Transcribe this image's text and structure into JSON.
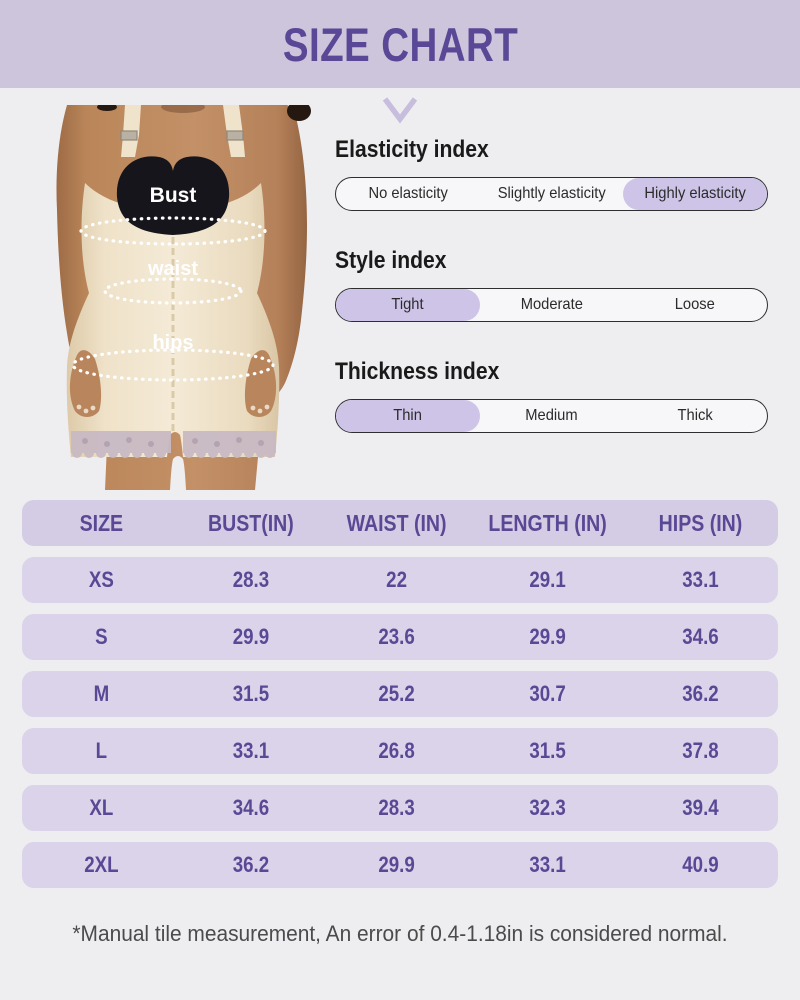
{
  "header": {
    "title": "SIZE CHART"
  },
  "chevron_icon": "v-shape",
  "model": {
    "labels": [
      "Bust",
      "waist",
      "hips"
    ]
  },
  "indexes": [
    {
      "title": "Elasticity index",
      "options": [
        "No elasticity",
        "Slightly elasticity",
        "Highly elasticity"
      ],
      "selected": 2
    },
    {
      "title": "Style index",
      "options": [
        "Tight",
        "Moderate",
        "Loose"
      ],
      "selected": 0
    },
    {
      "title": "Thickness index",
      "options": [
        "Thin",
        "Medium",
        "Thick"
      ],
      "selected": 0
    }
  ],
  "size_table": {
    "columns": [
      "SIZE",
      "BUST(IN)",
      "WAIST (IN)",
      "LENGTH (IN)",
      "HIPS (IN)"
    ],
    "rows": [
      [
        "XS",
        "28.3",
        "22",
        "29.1",
        "33.1"
      ],
      [
        "S",
        "29.9",
        "23.6",
        "29.9",
        "34.6"
      ],
      [
        "M",
        "31.5",
        "25.2",
        "30.7",
        "36.2"
      ],
      [
        "L",
        "33.1",
        "26.8",
        "31.5",
        "37.8"
      ],
      [
        "XL",
        "34.6",
        "28.3",
        "32.3",
        "39.4"
      ],
      [
        "2XL",
        "36.2",
        "29.9",
        "33.1",
        "40.9"
      ]
    ]
  },
  "footnote": "*Manual tile measurement, An error of 0.4-1.18in is considered normal.",
  "colors": {
    "page_bg": "#eeedf0",
    "banner_bg": "#ccc5dc",
    "title_purple": "#5a4796",
    "highlight": "#cec4e8",
    "table_header_bg": "#d4cbe4",
    "table_row_bg": "#dad3ea",
    "table_text": "#5b4895",
    "chevron": "#c7bede"
  }
}
